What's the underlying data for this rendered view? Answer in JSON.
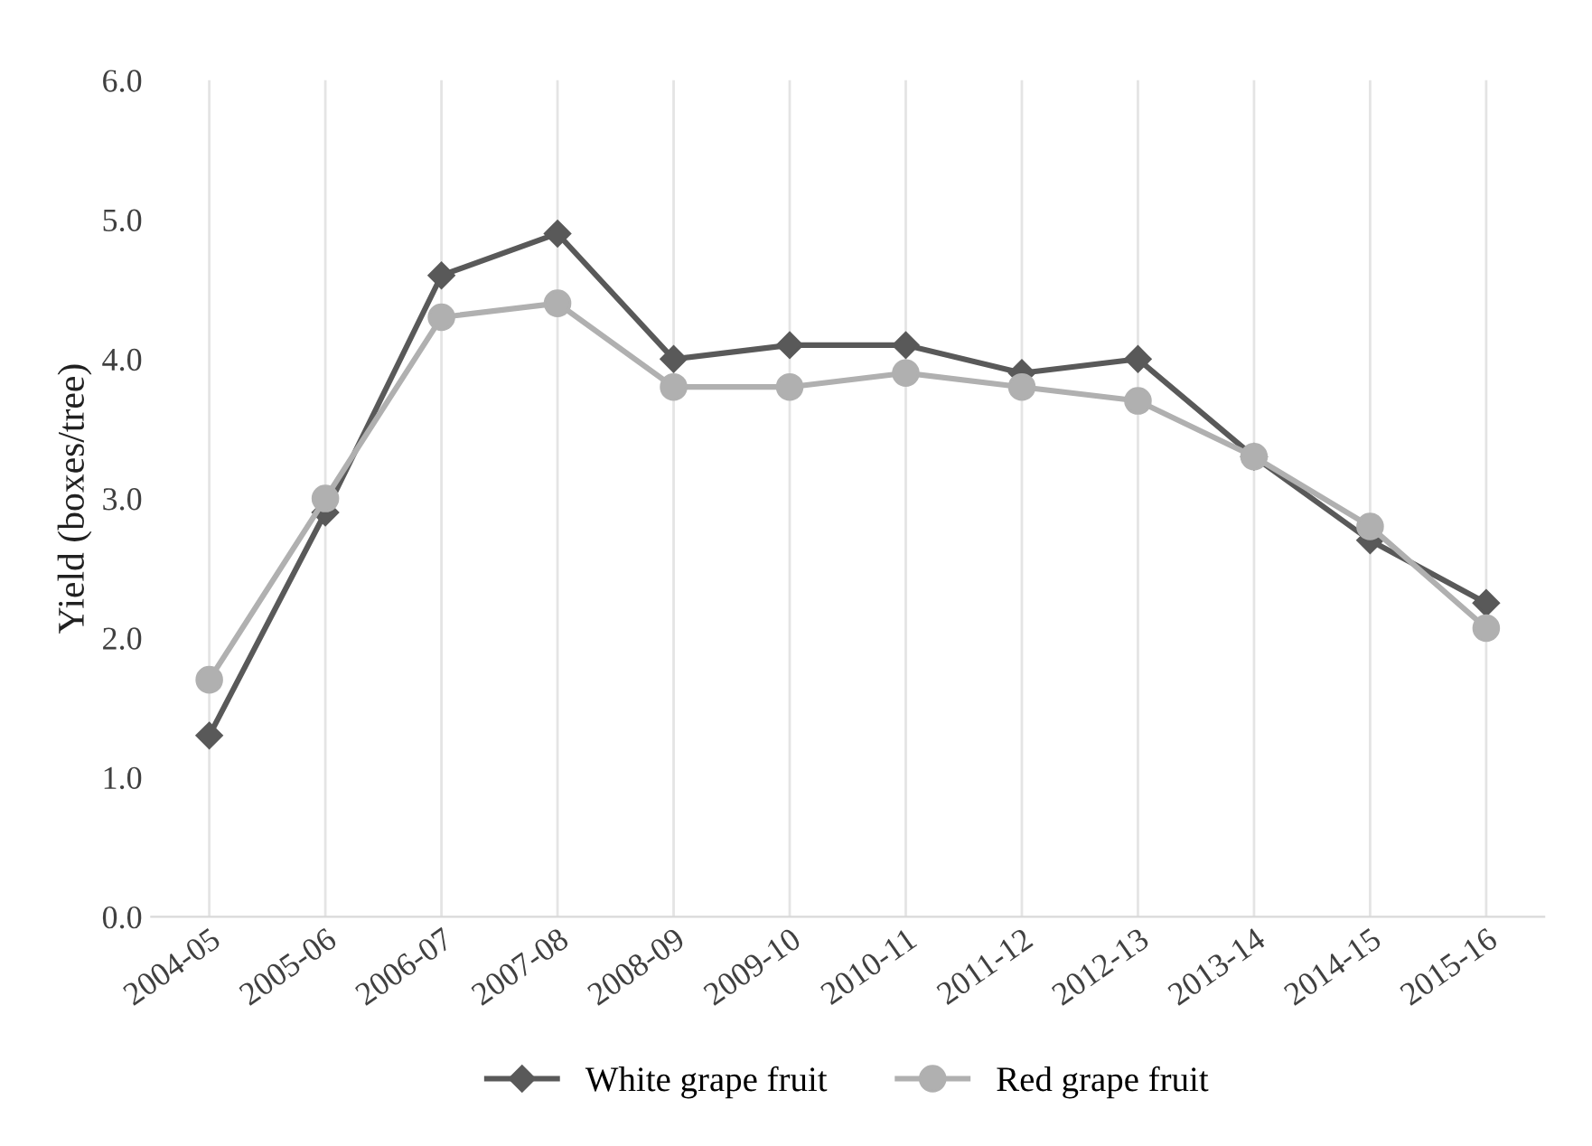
{
  "chart_data": {
    "type": "line",
    "ylabel": "Yield (boxes/tree)",
    "categories": [
      "2004-05",
      "2005-06",
      "2006-07",
      "2007-08",
      "2008-09",
      "2009-10",
      "2010-11",
      "2011-12",
      "2012-13",
      "2013-14",
      "2014-15",
      "2015-16"
    ],
    "series": [
      {
        "name": "White grape fruit",
        "color": "#595959",
        "marker": "diamond",
        "values": [
          1.3,
          2.9,
          4.6,
          4.9,
          4.0,
          4.1,
          4.1,
          3.9,
          4.0,
          3.3,
          2.7,
          2.25
        ]
      },
      {
        "name": "Red grape fruit",
        "color": "#b0b0b0",
        "marker": "circle",
        "values": [
          1.7,
          3.0,
          4.3,
          4.4,
          3.8,
          3.8,
          3.9,
          3.8,
          3.7,
          3.3,
          2.8,
          2.07
        ]
      }
    ],
    "ylim": [
      0,
      6
    ],
    "yticks": [
      {
        "value": 0,
        "label": "0.0"
      },
      {
        "value": 1,
        "label": "1.0"
      },
      {
        "value": 2,
        "label": "2.0"
      },
      {
        "value": 3,
        "label": "3.0"
      },
      {
        "value": 4,
        "label": "4.0"
      },
      {
        "value": 5,
        "label": "5.0"
      },
      {
        "value": 6,
        "label": "6.0"
      }
    ],
    "grid": "x",
    "legend": "bottom",
    "line_style": "solid"
  }
}
